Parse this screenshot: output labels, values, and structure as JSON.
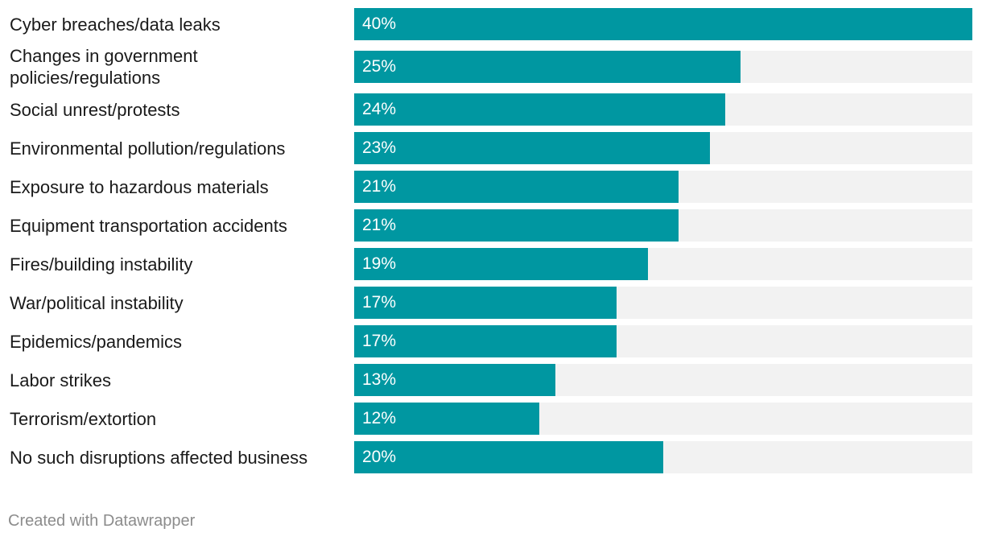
{
  "chart_data": {
    "type": "bar",
    "orientation": "horizontal",
    "categories": [
      "Cyber breaches/data leaks",
      "Changes in government policies/regulations",
      "Social unrest/protests",
      "Environmental pollution/regulations",
      "Exposure to hazardous materials",
      "Equipment transportation accidents",
      "Fires/building instability",
      "War/political instability",
      "Epidemics/pandemics",
      "Labor strikes",
      "Terrorism/extortion",
      "No such disruptions affected business"
    ],
    "values": [
      40,
      25,
      24,
      23,
      21,
      21,
      19,
      17,
      17,
      13,
      12,
      20
    ],
    "value_labels": [
      "40%",
      "25%",
      "24%",
      "23%",
      "21%",
      "21%",
      "19%",
      "17%",
      "17%",
      "13%",
      "12%",
      "20%"
    ],
    "xlim": [
      0,
      40
    ],
    "title": "",
    "xlabel": "",
    "ylabel": "",
    "grid": false,
    "bar_color": "#0097a1",
    "track_color": "#f2f2f2"
  },
  "footer": {
    "credit": "Created with Datawrapper"
  }
}
